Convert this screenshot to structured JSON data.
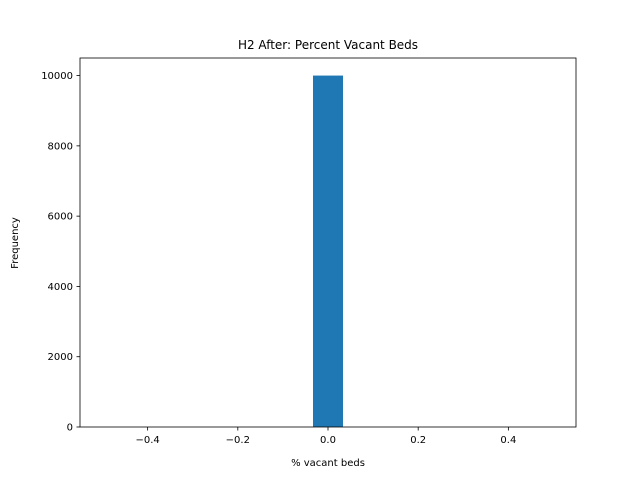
{
  "chart_data": {
    "type": "bar",
    "title": "H2 After: Percent Vacant Beds",
    "xlabel": "% vacant beds",
    "ylabel": "Frequency",
    "xlim": [
      -0.55,
      0.55
    ],
    "ylim": [
      0,
      10500
    ],
    "x_ticks": [
      -0.4,
      -0.2,
      0.0,
      0.2,
      0.4
    ],
    "x_tick_labels": [
      "−0.4",
      "−0.2",
      "0.0",
      "0.2",
      "0.4"
    ],
    "y_ticks": [
      0,
      2000,
      4000,
      6000,
      8000,
      10000
    ],
    "y_tick_labels": [
      "0",
      "2000",
      "4000",
      "6000",
      "8000",
      "10000"
    ],
    "bins": [
      {
        "start": -0.0333,
        "end": 0.0333,
        "value": 10000
      }
    ],
    "bar_color": "#1f77b4",
    "grid": false,
    "legend": "none"
  }
}
